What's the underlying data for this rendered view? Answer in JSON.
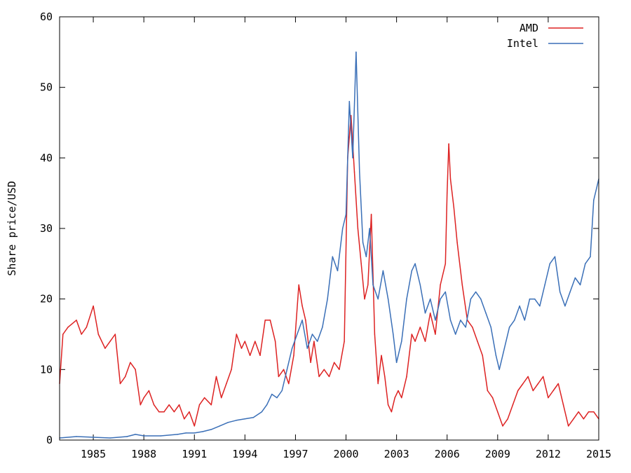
{
  "chart_data": {
    "type": "line",
    "title": "",
    "xlabel": "",
    "ylabel": "Share price/USD",
    "xlim": [
      1983.0,
      2015.0
    ],
    "ylim": [
      0,
      60
    ],
    "x_ticks": [
      1985,
      1988,
      1991,
      1994,
      1997,
      2000,
      2003,
      2006,
      2009,
      2012,
      2015
    ],
    "x_tick_labels": [
      "1985",
      "1988",
      "1991",
      "1994",
      "1997",
      "2000",
      "2003",
      "2006",
      "2009",
      "2012",
      "2015"
    ],
    "y_ticks": [
      0,
      10,
      20,
      30,
      40,
      50,
      60
    ],
    "y_tick_labels": [
      "0",
      "10",
      "20",
      "30",
      "40",
      "50",
      "60"
    ],
    "grid": false,
    "legend_position": "top-right",
    "series": [
      {
        "name": "AMD",
        "color": "#dd2222",
        "x": [
          1983.0,
          1983.2,
          1983.5,
          1984.0,
          1984.3,
          1984.6,
          1985.0,
          1985.3,
          1985.7,
          1986.0,
          1986.3,
          1986.6,
          1986.9,
          1987.2,
          1987.5,
          1987.8,
          1988.0,
          1988.3,
          1988.6,
          1988.9,
          1989.2,
          1989.5,
          1989.8,
          1990.1,
          1990.4,
          1990.7,
          1991.0,
          1991.3,
          1991.6,
          1992.0,
          1992.3,
          1992.6,
          1992.9,
          1993.2,
          1993.5,
          1993.8,
          1994.0,
          1994.3,
          1994.6,
          1994.9,
          1995.2,
          1995.5,
          1995.8,
          1996.0,
          1996.3,
          1996.6,
          1996.9,
          1997.2,
          1997.4,
          1997.6,
          1997.9,
          1998.1,
          1998.4,
          1998.7,
          1999.0,
          1999.3,
          1999.6,
          1999.9,
          2000.1,
          2000.3,
          2000.5,
          2000.7,
          2000.9,
          2001.1,
          2001.3,
          2001.5,
          2001.7,
          2001.9,
          2002.1,
          2002.3,
          2002.5,
          2002.7,
          2002.9,
          2003.1,
          2003.3,
          2003.6,
          2003.9,
          2004.1,
          2004.4,
          2004.7,
          2005.0,
          2005.3,
          2005.6,
          2005.9,
          2006.0,
          2006.1,
          2006.2,
          2006.4,
          2006.6,
          2006.9,
          2007.2,
          2007.5,
          2007.8,
          2008.1,
          2008.4,
          2008.7,
          2009.0,
          2009.3,
          2009.6,
          2009.9,
          2010.2,
          2010.5,
          2010.8,
          2011.1,
          2011.4,
          2011.7,
          2012.0,
          2012.3,
          2012.6,
          2012.9,
          2013.2,
          2013.5,
          2013.8,
          2014.1,
          2014.4,
          2014.7,
          2015.0
        ],
        "values": [
          8,
          15,
          16,
          17,
          15,
          16,
          19,
          15,
          13,
          14,
          15,
          8,
          9,
          11,
          10,
          5,
          6,
          7,
          5,
          4,
          4,
          5,
          4,
          5,
          3,
          4,
          2,
          5,
          6,
          5,
          9,
          6,
          8,
          10,
          15,
          13,
          14,
          12,
          14,
          12,
          17,
          17,
          14,
          9,
          10,
          8,
          12,
          22,
          19,
          17,
          11,
          14,
          9,
          10,
          9,
          11,
          10,
          14,
          40,
          46,
          38,
          30,
          25,
          20,
          22,
          32,
          15,
          8,
          12,
          9,
          5,
          4,
          6,
          7,
          6,
          9,
          15,
          14,
          16,
          14,
          18,
          15,
          22,
          25,
          35,
          42,
          37,
          33,
          28,
          22,
          17,
          16,
          14,
          12,
          7,
          6,
          4,
          2,
          3,
          5,
          7,
          8,
          9,
          7,
          8,
          9,
          6,
          7,
          8,
          5,
          2,
          3,
          4,
          3,
          4,
          4,
          3
        ]
      },
      {
        "name": "Intel",
        "color": "#3a6fb7",
        "x": [
          1983.0,
          1984.0,
          1985.0,
          1986.0,
          1987.0,
          1987.5,
          1988.0,
          1989.0,
          1990.0,
          1990.5,
          1991.0,
          1991.5,
          1992.0,
          1992.5,
          1993.0,
          1993.5,
          1994.0,
          1994.5,
          1995.0,
          1995.3,
          1995.6,
          1995.9,
          1996.2,
          1996.5,
          1996.8,
          1997.1,
          1997.4,
          1997.7,
          1998.0,
          1998.3,
          1998.6,
          1998.9,
          1999.2,
          1999.5,
          1999.8,
          2000.0,
          2000.2,
          2000.4,
          2000.6,
          2000.8,
          2001.0,
          2001.2,
          2001.4,
          2001.6,
          2001.9,
          2002.2,
          2002.5,
          2002.8,
          2003.0,
          2003.3,
          2003.6,
          2003.9,
          2004.1,
          2004.4,
          2004.7,
          2005.0,
          2005.3,
          2005.6,
          2005.9,
          2006.2,
          2006.5,
          2006.8,
          2007.1,
          2007.4,
          2007.7,
          2008.0,
          2008.3,
          2008.6,
          2008.9,
          2009.1,
          2009.4,
          2009.7,
          2010.0,
          2010.3,
          2010.6,
          2010.9,
          2011.2,
          2011.5,
          2011.8,
          2012.1,
          2012.4,
          2012.7,
          2013.0,
          2013.3,
          2013.6,
          2013.9,
          2014.2,
          2014.5,
          2014.7,
          2015.0
        ],
        "values": [
          0.3,
          0.5,
          0.4,
          0.3,
          0.5,
          0.8,
          0.6,
          0.6,
          0.8,
          1.0,
          1.0,
          1.2,
          1.5,
          2.0,
          2.5,
          2.8,
          3.0,
          3.2,
          4.0,
          5.0,
          6.5,
          6.0,
          7.0,
          10.0,
          13.0,
          15.0,
          17.0,
          13.0,
          15.0,
          14.0,
          16.0,
          20.0,
          26.0,
          24.0,
          30.0,
          32.0,
          48.0,
          40.0,
          55.0,
          38.0,
          28.0,
          26.0,
          30.0,
          22.0,
          20.0,
          24.0,
          20.0,
          15.0,
          11.0,
          14.0,
          20.0,
          24.0,
          25.0,
          22.0,
          18.0,
          20.0,
          17.0,
          20.0,
          21.0,
          17.0,
          15.0,
          17.0,
          16.0,
          20.0,
          21.0,
          20.0,
          18.0,
          16.0,
          12.0,
          10.0,
          13.0,
          16.0,
          17.0,
          19.0,
          17.0,
          20.0,
          20.0,
          19.0,
          22.0,
          25.0,
          26.0,
          21.0,
          19.0,
          21.0,
          23.0,
          22.0,
          25.0,
          26.0,
          34.0,
          37.0
        ]
      }
    ]
  }
}
